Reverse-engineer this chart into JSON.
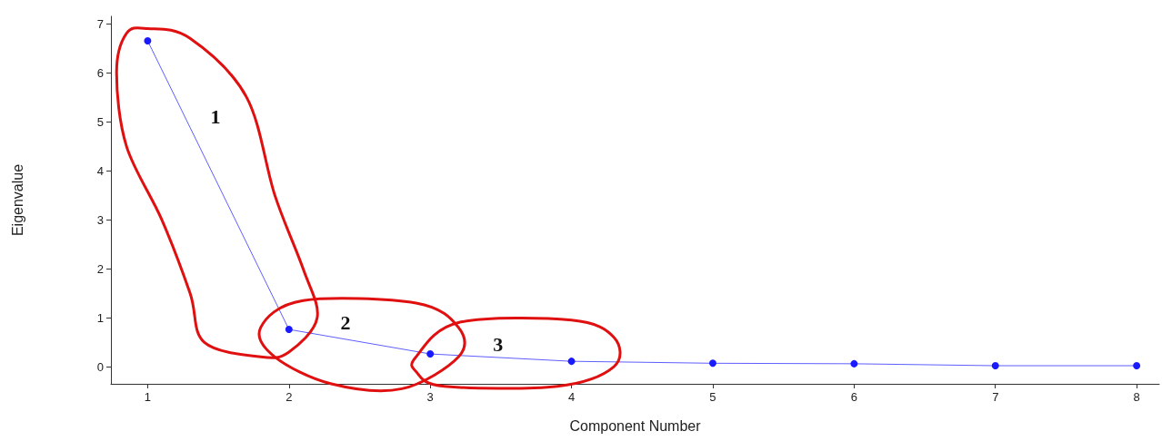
{
  "chart_data": {
    "type": "line",
    "xlabel": "Component Number",
    "ylabel": "Eigenvalue",
    "x": [
      1,
      2,
      3,
      4,
      5,
      6,
      7,
      8
    ],
    "series": [
      {
        "color": "#1a1aff",
        "values": [
          6.65,
          0.76,
          0.26,
          0.11,
          0.07,
          0.06,
          0.02,
          0.02
        ]
      }
    ],
    "xlim": [
      0.74,
      8.16
    ],
    "xticks": [
      1,
      2,
      3,
      4,
      5,
      6,
      7,
      8
    ],
    "ylim": [
      -0.35,
      7.15
    ],
    "yticks": [
      0,
      1,
      2,
      3,
      4,
      5,
      6,
      7
    ],
    "marker": "circle",
    "line_style": "solid",
    "grid": false,
    "annotations": [
      "1",
      "2",
      "3"
    ]
  }
}
